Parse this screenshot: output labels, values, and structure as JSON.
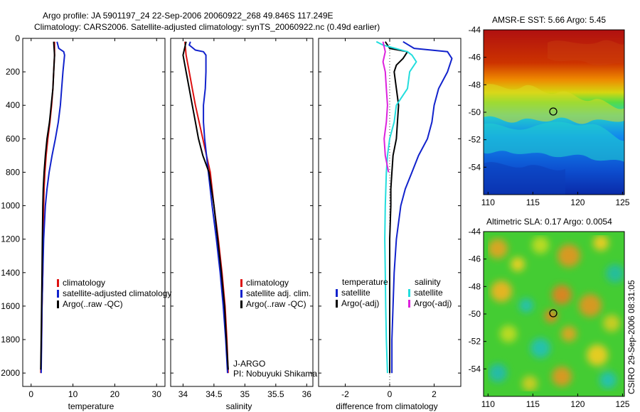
{
  "header": {
    "line1": "Argo profile: JA 5901197_24 22-Sep-2006 20060922_268 49.846S 117.249E",
    "line2": "Climatology: CARS2006. Satellite-adjusted climatology: synTS_20060922.nc (0.49d earlier)"
  },
  "side_stamp": "CSIRO 29-Sep-2006 08:31:05",
  "colors": {
    "climatology": "#dd1111",
    "satellite": "#1122cc",
    "argo": "#000000",
    "sal_sat": "#22dddd",
    "sal_argo": "#dd22dd"
  },
  "chart_data": [
    {
      "type": "line",
      "xlabel": "temperature",
      "xlim": [
        -2,
        32
      ],
      "xticks": [
        0,
        10,
        20,
        30
      ],
      "ylim": [
        0,
        2080
      ],
      "yticks": [
        0,
        200,
        400,
        600,
        800,
        1000,
        1200,
        1400,
        1600,
        1800,
        2000
      ],
      "y_reversed": true,
      "legend": [
        "climatology",
        "satellite-adjusted climatology",
        "Argo(..raw -QC)"
      ],
      "series": [
        {
          "name": "climatology",
          "color": "#dd1111",
          "points": [
            [
              5.6,
              20
            ],
            [
              5.6,
              100
            ],
            [
              5.4,
              200
            ],
            [
              5.2,
              300
            ],
            [
              4.9,
              400
            ],
            [
              4.5,
              500
            ],
            [
              4.0,
              600
            ],
            [
              3.6,
              700
            ],
            [
              3.3,
              800
            ],
            [
              3.1,
              900
            ],
            [
              3.0,
              1000
            ],
            [
              2.9,
              1200
            ],
            [
              2.8,
              1400
            ],
            [
              2.6,
              1600
            ],
            [
              2.5,
              1800
            ],
            [
              2.3,
              2000
            ]
          ]
        },
        {
          "name": "satellite-adjusted climatology",
          "color": "#1122cc",
          "points": [
            [
              6.2,
              20
            ],
            [
              6.6,
              60
            ],
            [
              7.8,
              80
            ],
            [
              8.0,
              100
            ],
            [
              7.6,
              200
            ],
            [
              7.3,
              300
            ],
            [
              7.0,
              400
            ],
            [
              6.5,
              500
            ],
            [
              5.8,
              600
            ],
            [
              5.0,
              700
            ],
            [
              4.3,
              800
            ],
            [
              3.8,
              900
            ],
            [
              3.4,
              1000
            ],
            [
              3.0,
              1200
            ],
            [
              2.8,
              1400
            ],
            [
              2.6,
              1600
            ],
            [
              2.5,
              1800
            ],
            [
              2.4,
              2000
            ]
          ]
        },
        {
          "name": "Argo(..raw -QC)",
          "color": "#000000",
          "points": [
            [
              5.4,
              20
            ],
            [
              5.6,
              100
            ],
            [
              5.4,
              200
            ],
            [
              5.2,
              300
            ],
            [
              4.8,
              400
            ],
            [
              4.4,
              500
            ],
            [
              3.8,
              600
            ],
            [
              3.4,
              700
            ],
            [
              3.1,
              800
            ],
            [
              2.9,
              900
            ],
            [
              2.8,
              1000
            ],
            [
              2.7,
              1200
            ],
            [
              2.6,
              1400
            ],
            [
              2.5,
              1600
            ],
            [
              2.4,
              1800
            ],
            [
              2.3,
              1980
            ]
          ]
        }
      ]
    },
    {
      "type": "line",
      "xlabel": "salinity",
      "xlim": [
        33.8,
        36.1
      ],
      "xticks": [
        34,
        34.5,
        35,
        35.5,
        36
      ],
      "ylim": [
        0,
        2080
      ],
      "y_reversed": true,
      "legend": [
        "climatology",
        "satellite adj. clim.",
        "Argo(..raw -QC)"
      ],
      "annotation": [
        "J-ARGO",
        "PI: Nobuyuki Shikama"
      ],
      "series": [
        {
          "name": "climatology",
          "color": "#dd1111",
          "points": [
            [
              34.03,
              20
            ],
            [
              34.05,
              100
            ],
            [
              34.1,
              200
            ],
            [
              34.15,
              300
            ],
            [
              34.2,
              400
            ],
            [
              34.26,
              500
            ],
            [
              34.32,
              600
            ],
            [
              34.38,
              700
            ],
            [
              34.44,
              800
            ],
            [
              34.5,
              1000
            ],
            [
              34.57,
              1200
            ],
            [
              34.63,
              1400
            ],
            [
              34.68,
              1600
            ],
            [
              34.71,
              1800
            ],
            [
              34.73,
              2000
            ]
          ]
        },
        {
          "name": "satellite adj. clim.",
          "color": "#1122cc",
          "points": [
            [
              34.12,
              20
            ],
            [
              34.1,
              40
            ],
            [
              34.2,
              70
            ],
            [
              34.33,
              80
            ],
            [
              34.37,
              100
            ],
            [
              34.37,
              200
            ],
            [
              34.36,
              300
            ],
            [
              34.33,
              400
            ],
            [
              34.33,
              500
            ],
            [
              34.35,
              600
            ],
            [
              34.38,
              700
            ],
            [
              34.41,
              800
            ],
            [
              34.47,
              1000
            ],
            [
              34.54,
              1200
            ],
            [
              34.6,
              1400
            ],
            [
              34.65,
              1600
            ],
            [
              34.69,
              1800
            ],
            [
              34.72,
              2000
            ]
          ]
        },
        {
          "name": "Argo(..raw -QC)",
          "color": "#000000",
          "points": [
            [
              34.05,
              20
            ],
            [
              34.0,
              100
            ],
            [
              34.05,
              200
            ],
            [
              34.1,
              300
            ],
            [
              34.15,
              400
            ],
            [
              34.2,
              500
            ],
            [
              34.25,
              600
            ],
            [
              34.32,
              700
            ],
            [
              34.42,
              800
            ],
            [
              34.5,
              1000
            ],
            [
              34.56,
              1200
            ],
            [
              34.62,
              1400
            ],
            [
              34.67,
              1600
            ],
            [
              34.7,
              1800
            ],
            [
              34.73,
              1980
            ]
          ]
        }
      ]
    },
    {
      "type": "line",
      "xlabel": "difference from climatology",
      "xlim": [
        -3.2,
        3.2
      ],
      "xticks": [
        -2,
        0,
        2
      ],
      "ylim": [
        0,
        2080
      ],
      "y_reversed": true,
      "legend_left_title": "temperature",
      "legend_right_title": "salinity",
      "legend_left": [
        "satellite",
        "Argo(-adj)"
      ],
      "legend_right": [
        "satellite",
        "Argo(-adj)"
      ],
      "series": [
        {
          "name": "temperature satellite",
          "color": "#1122cc",
          "points": [
            [
              0.6,
              20
            ],
            [
              1.1,
              60
            ],
            [
              2.6,
              80
            ],
            [
              2.8,
              120
            ],
            [
              2.6,
              200
            ],
            [
              2.2,
              300
            ],
            [
              2.0,
              400
            ],
            [
              1.9,
              500
            ],
            [
              1.7,
              600
            ],
            [
              1.3,
              700
            ],
            [
              1.0,
              800
            ],
            [
              0.7,
              900
            ],
            [
              0.5,
              1000
            ],
            [
              0.3,
              1200
            ],
            [
              0.2,
              1400
            ],
            [
              0.15,
              1600
            ],
            [
              0.1,
              1800
            ],
            [
              0.1,
              2000
            ]
          ]
        },
        {
          "name": "temperature Argo(-adj)",
          "color": "#000000",
          "points": [
            [
              -0.2,
              20
            ],
            [
              0.0,
              60
            ],
            [
              0.8,
              80
            ],
            [
              0.6,
              120
            ],
            [
              0.3,
              160
            ],
            [
              0.2,
              200
            ],
            [
              0.3,
              300
            ],
            [
              0.4,
              400
            ],
            [
              0.35,
              500
            ],
            [
              0.3,
              600
            ],
            [
              0.15,
              700
            ],
            [
              0.1,
              800
            ],
            [
              0.05,
              900
            ],
            [
              0.05,
              1000
            ],
            [
              0.0,
              1200
            ],
            [
              0.0,
              1400
            ],
            [
              0.0,
              1600
            ],
            [
              0.0,
              1800
            ],
            [
              0.0,
              2000
            ]
          ]
        },
        {
          "name": "salinity satellite",
          "color": "#22dddd",
          "points": [
            [
              -0.6,
              20
            ],
            [
              -0.3,
              40
            ],
            [
              0.8,
              80
            ],
            [
              1.0,
              100
            ],
            [
              1.2,
              140
            ],
            [
              0.9,
              200
            ],
            [
              0.8,
              300
            ],
            [
              0.3,
              400
            ],
            [
              0.2,
              500
            ],
            [
              0.0,
              600
            ],
            [
              -0.1,
              700
            ],
            [
              -0.15,
              800
            ],
            [
              -0.2,
              1000
            ],
            [
              -0.22,
              1200
            ],
            [
              -0.2,
              1400
            ],
            [
              -0.18,
              1600
            ],
            [
              -0.15,
              1800
            ],
            [
              -0.1,
              2000
            ]
          ]
        },
        {
          "name": "salinity Argo(-adj)",
          "color": "#dd22dd",
          "points": [
            [
              -0.3,
              20
            ],
            [
              -0.2,
              80
            ],
            [
              -0.3,
              140
            ],
            [
              -0.2,
              200
            ],
            [
              -0.15,
              300
            ],
            [
              -0.1,
              400
            ],
            [
              -0.15,
              500
            ],
            [
              -0.25,
              600
            ],
            [
              -0.2,
              700
            ],
            [
              -0.05,
              800
            ]
          ]
        }
      ]
    },
    {
      "type": "heatmap",
      "title": "AMSR-E SST: 5.66 Argo: 5.45",
      "xlim": [
        109.5,
        125.2
      ],
      "xticks": [
        110,
        115,
        120,
        125
      ],
      "ylim": [
        -56,
        -44
      ],
      "yticks": [
        -44,
        -46,
        -48,
        -50,
        -52,
        -54
      ],
      "marker": [
        117.249,
        -49.846
      ]
    },
    {
      "type": "heatmap",
      "title": "Altimetric SLA: 0.17 Argo: 0.0054",
      "xlim": [
        109.5,
        125.2
      ],
      "xticks": [
        110,
        115,
        120,
        125
      ],
      "ylim": [
        -56,
        -44
      ],
      "yticks": [
        -44,
        -46,
        -48,
        -50,
        -52,
        -54
      ],
      "marker": [
        117.249,
        -49.846
      ]
    }
  ]
}
